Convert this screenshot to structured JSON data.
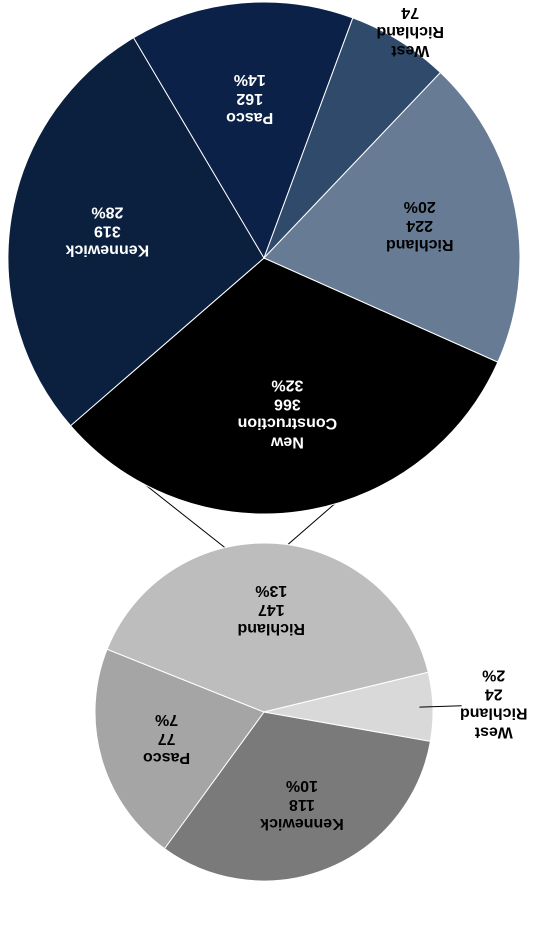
{
  "chart_data": {
    "type": "pie",
    "subtype": "pie-of-pie",
    "orientation": "upside-down",
    "main_pie": {
      "slices": [
        {
          "label": "New Construction",
          "value": 366,
          "percent": "32%",
          "color": "#000000",
          "text_color": "#ffffff"
        },
        {
          "label": "Kennewick",
          "value": 319,
          "percent": "28%",
          "color": "#0b1f3f",
          "text_color": "#ffffff"
        },
        {
          "label": "Pasco",
          "value": 162,
          "percent": "14%",
          "color": "#0c2148",
          "text_color": "#ffffff"
        },
        {
          "label": "West Richland",
          "value": 74,
          "percent": "6%",
          "color": "#2f4a6a",
          "text_color": "#000000"
        },
        {
          "label": "Richland",
          "value": 224,
          "percent": "20%",
          "color": "#677c94",
          "text_color": "#000000"
        }
      ]
    },
    "secondary_pie": {
      "slices": [
        {
          "label": "Kennewick",
          "value": 118,
          "percent": "10%",
          "color": "#7a7a7a",
          "text_color": "#000000"
        },
        {
          "label": "Pasco",
          "value": 77,
          "percent": "7%",
          "color": "#a5a5a5",
          "text_color": "#000000"
        },
        {
          "label": "Richland",
          "value": 147,
          "percent": "13%",
          "color": "#bdbdbd",
          "text_color": "#000000"
        },
        {
          "label": "West Richland",
          "value": 24,
          "percent": "2%",
          "color": "#d9d9d9",
          "text_color": "#000000"
        }
      ]
    },
    "legend": "none"
  }
}
